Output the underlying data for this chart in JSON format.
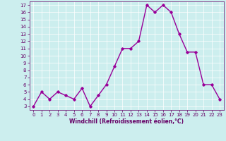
{
  "x": [
    0,
    1,
    2,
    3,
    4,
    5,
    6,
    7,
    8,
    9,
    10,
    11,
    12,
    13,
    14,
    15,
    16,
    17,
    18,
    19,
    20,
    21,
    22,
    23
  ],
  "y": [
    3,
    5,
    4,
    5,
    4.5,
    4,
    5.5,
    3,
    4.5,
    6,
    8.5,
    11,
    11,
    12,
    17,
    16,
    17,
    16,
    13,
    10.5,
    10.5,
    6,
    6,
    4
  ],
  "line_color": "#990099",
  "marker": "D",
  "marker_size": 1.8,
  "bg_color": "#cceeee",
  "grid_color": "#ffffff",
  "xlabel": "Windchill (Refroidissement éolien,°C)",
  "xlabel_color": "#660066",
  "tick_color": "#660066",
  "ylim": [
    2.5,
    17.5
  ],
  "xlim": [
    -0.5,
    23.5
  ],
  "yticks": [
    3,
    4,
    5,
    6,
    7,
    8,
    9,
    10,
    11,
    12,
    13,
    14,
    15,
    16,
    17
  ],
  "xticks": [
    0,
    1,
    2,
    3,
    4,
    5,
    6,
    7,
    8,
    9,
    10,
    11,
    12,
    13,
    14,
    15,
    16,
    17,
    18,
    19,
    20,
    21,
    22,
    23
  ],
  "line_width": 1.0,
  "tick_labelsize": 5.0,
  "xlabel_fontsize": 5.5
}
